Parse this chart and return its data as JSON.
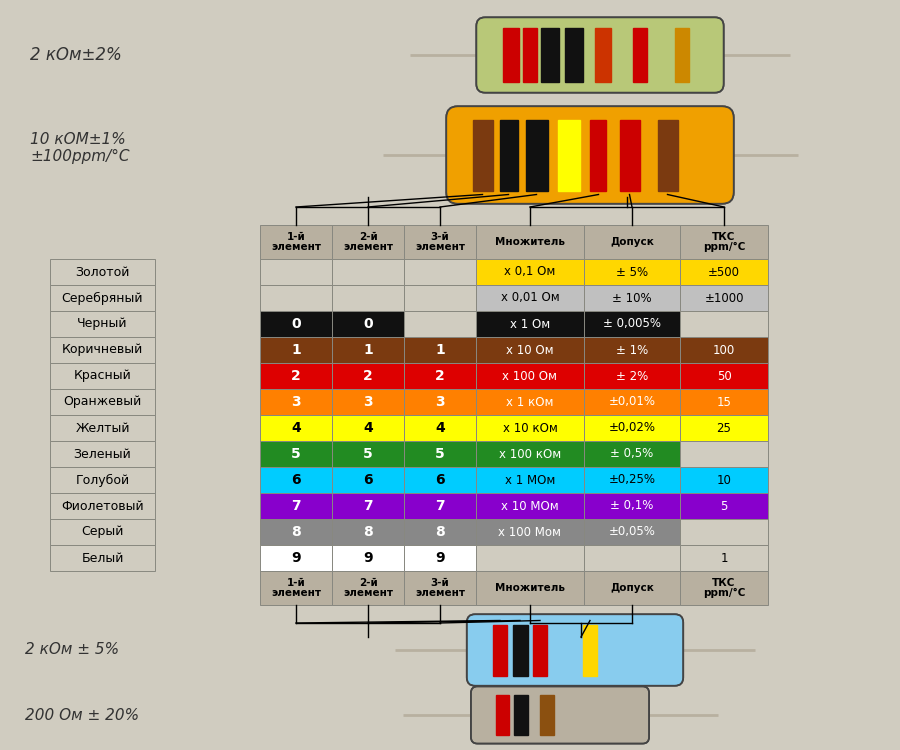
{
  "bg_color": "#d0ccc0",
  "rows": [
    {
      "name": "Золотой",
      "col1": null,
      "col2": null,
      "col3": null,
      "mult": "х 0,1 Ом",
      "tol": "± 5%",
      "tkc": "±500",
      "row_color": "#FFD700",
      "text_color": "#000000",
      "mult_bg": "#FFD700",
      "tol_bg": "#FFD700",
      "tkc_bg": "#FFD700"
    },
    {
      "name": "Серебряный",
      "col1": null,
      "col2": null,
      "col3": null,
      "mult": "х 0,01 Ом",
      "tol": "± 10%",
      "tkc": "±1000",
      "row_color": "#C0C0C0",
      "text_color": "#000000",
      "mult_bg": "#C0C0C0",
      "tol_bg": "#C0C0C0",
      "tkc_bg": "#C0C0C0"
    },
    {
      "name": "Черный",
      "col1": "0",
      "col2": "0",
      "col3": null,
      "mult": "х 1 Ом",
      "tol": "± 0,005%",
      "tkc": "",
      "row_color": "#111111",
      "text_color": "#FFFFFF",
      "mult_bg": "#111111",
      "tol_bg": "#111111",
      "tkc_bg": null
    },
    {
      "name": "Коричневый",
      "col1": "1",
      "col2": "1",
      "col3": "1",
      "mult": "х 10 Ом",
      "tol": "± 1%",
      "tkc": "100",
      "row_color": "#7B3A10",
      "text_color": "#FFFFFF",
      "mult_bg": "#7B3A10",
      "tol_bg": "#7B3A10",
      "tkc_bg": "#7B3A10"
    },
    {
      "name": "Красный",
      "col1": "2",
      "col2": "2",
      "col3": "2",
      "mult": "х 100 Ом",
      "tol": "± 2%",
      "tkc": "50",
      "row_color": "#DD0000",
      "text_color": "#FFFFFF",
      "mult_bg": "#DD0000",
      "tol_bg": "#DD0000",
      "tkc_bg": "#DD0000"
    },
    {
      "name": "Оранжевый",
      "col1": "3",
      "col2": "3",
      "col3": "3",
      "mult": "х 1 кОм",
      "tol": "±0,01%",
      "tkc": "15",
      "row_color": "#FF8000",
      "text_color": "#FFFFFF",
      "mult_bg": "#FF8000",
      "tol_bg": "#FF8000",
      "tkc_bg": "#FF8000"
    },
    {
      "name": "Желтый",
      "col1": "4",
      "col2": "4",
      "col3": "4",
      "mult": "х 10 кОм",
      "tol": "±0,02%",
      "tkc": "25",
      "row_color": "#FFFF00",
      "text_color": "#000000",
      "mult_bg": "#FFFF00",
      "tol_bg": "#FFFF00",
      "tkc_bg": "#FFFF00"
    },
    {
      "name": "Зеленый",
      "col1": "5",
      "col2": "5",
      "col3": "5",
      "mult": "х 100 кОм",
      "tol": "± 0,5%",
      "tkc": "",
      "row_color": "#228B22",
      "text_color": "#FFFFFF",
      "mult_bg": "#228B22",
      "tol_bg": "#228B22",
      "tkc_bg": null
    },
    {
      "name": "Голубой",
      "col1": "6",
      "col2": "6",
      "col3": "6",
      "mult": "х 1 МОм",
      "tol": "±0,25%",
      "tkc": "10",
      "row_color": "#00CCFF",
      "text_color": "#000000",
      "mult_bg": "#00CCFF",
      "tol_bg": "#00CCFF",
      "tkc_bg": "#00CCFF"
    },
    {
      "name": "Фиолетовый",
      "col1": "7",
      "col2": "7",
      "col3": "7",
      "mult": "х 10 МОм",
      "tol": "± 0,1%",
      "tkc": "5",
      "row_color": "#8800CC",
      "text_color": "#FFFFFF",
      "mult_bg": "#8800CC",
      "tol_bg": "#8800CC",
      "tkc_bg": "#8800CC"
    },
    {
      "name": "Серый",
      "col1": "8",
      "col2": "8",
      "col3": "8",
      "mult": "х 100 Мом",
      "tol": "±0,05%",
      "tkc": "",
      "row_color": "#888888",
      "text_color": "#FFFFFF",
      "mult_bg": "#888888",
      "tol_bg": "#888888",
      "tkc_bg": null
    },
    {
      "name": "Белый",
      "col1": "9",
      "col2": "9",
      "col3": "9",
      "mult": "",
      "tol": "",
      "tkc": "1",
      "row_color": "#FFFFFF",
      "text_color": "#000000",
      "mult_bg": null,
      "tol_bg": null,
      "tkc_bg": null
    }
  ],
  "header": [
    "1-й\nэлемент",
    "2-й\nэлемент",
    "3-й\nэлемент",
    "Множитель",
    "Допуск",
    "ТКС\nppm/°C"
  ],
  "resistor1_label": "2 кОм±2%",
  "resistor2_label": "10 кОМ±1%\n±100ppm/°C",
  "resistor3_label": "2 кОм ± 5%",
  "resistor4_label": "200 Ом ± 20%",
  "wire_color": "#b0a898",
  "header_bg": "#b8b0a0",
  "name_col_bg": "#d0ccc0",
  "border_color": "#888880"
}
